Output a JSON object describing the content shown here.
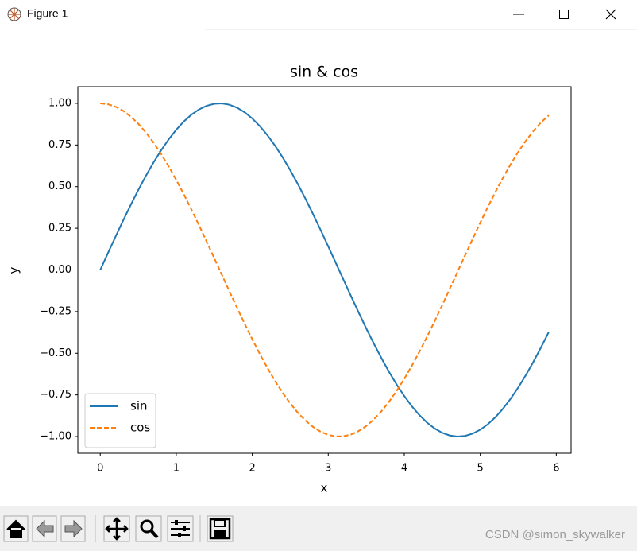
{
  "window": {
    "title": "Figure 1"
  },
  "watermark": "CSDN @simon_skywalker",
  "chart_data": {
    "type": "line",
    "title": "sin & cos",
    "x_label": "x",
    "y_label": "y",
    "x": [
      0,
      0.1,
      0.2,
      0.3,
      0.4,
      0.5,
      0.6,
      0.7,
      0.8,
      0.9,
      1.0,
      1.1,
      1.2,
      1.3,
      1.4,
      1.5,
      1.6,
      1.7,
      1.8,
      1.9,
      2.0,
      2.1,
      2.2,
      2.3,
      2.4,
      2.5,
      2.6,
      2.7,
      2.8,
      2.9,
      3.0,
      3.1,
      3.2,
      3.3,
      3.4,
      3.5,
      3.6,
      3.7,
      3.8,
      3.9,
      4.0,
      4.1,
      4.2,
      4.3,
      4.4,
      4.5,
      4.6,
      4.7,
      4.8,
      4.9,
      5.0,
      5.1,
      5.2,
      5.3,
      5.4,
      5.5,
      5.6,
      5.7,
      5.8,
      5.9
    ],
    "series": [
      {
        "name": "sin",
        "color": "#1f77b4",
        "linestyle": "solid",
        "values": [
          0,
          0.0998,
          0.1987,
          0.2955,
          0.3894,
          0.4794,
          0.5646,
          0.6442,
          0.7174,
          0.7833,
          0.8415,
          0.8912,
          0.932,
          0.9636,
          0.9854,
          0.9975,
          0.9996,
          0.9917,
          0.9738,
          0.9463,
          0.9093,
          0.8632,
          0.8085,
          0.7457,
          0.6755,
          0.5985,
          0.5155,
          0.4274,
          0.335,
          0.2392,
          0.1411,
          0.0416,
          -0.0584,
          -0.1577,
          -0.2555,
          -0.3508,
          -0.4425,
          -0.5298,
          -0.6119,
          -0.6878,
          -0.7568,
          -0.8183,
          -0.8716,
          -0.9162,
          -0.9516,
          -0.9775,
          -0.9937,
          -0.9999,
          -0.9962,
          -0.9825,
          -0.9589,
          -0.9258,
          -0.8835,
          -0.8323,
          -0.7728,
          -0.7055,
          -0.6313,
          -0.5507,
          -0.4646,
          -0.3739
        ]
      },
      {
        "name": "cos",
        "color": "#ff7f0e",
        "linestyle": "dashed",
        "values": [
          1,
          0.995,
          0.9801,
          0.9553,
          0.9211,
          0.8776,
          0.8253,
          0.7648,
          0.6967,
          0.6216,
          0.5403,
          0.4536,
          0.3624,
          0.2675,
          0.17,
          0.0707,
          -0.0292,
          -0.1288,
          -0.2272,
          -0.3233,
          -0.4161,
          -0.5048,
          -0.5885,
          -0.6663,
          -0.7374,
          -0.8011,
          -0.8569,
          -0.9041,
          -0.9422,
          -0.971,
          -0.99,
          -0.9991,
          -0.9983,
          -0.9875,
          -0.9668,
          -0.9365,
          -0.8968,
          -0.8481,
          -0.791,
          -0.7259,
          -0.6536,
          -0.5748,
          -0.4903,
          -0.4008,
          -0.3073,
          -0.2108,
          -0.1122,
          -0.0124,
          0.0875,
          0.1865,
          0.2837,
          0.378,
          0.4685,
          0.5544,
          0.6347,
          0.7087,
          0.7756,
          0.8347,
          0.8855,
          0.9275
        ]
      }
    ],
    "xlim": [
      -0.295,
      6.195
    ],
    "ylim": [
      -1.1,
      1.1
    ],
    "xticks": [
      0,
      1,
      2,
      3,
      4,
      5,
      6
    ],
    "yticks": [
      {
        "value": 1,
        "label": "1.00"
      },
      {
        "value": 0.75,
        "label": "0.75"
      },
      {
        "value": 0.5,
        "label": "0.50"
      },
      {
        "value": 0.25,
        "label": "0.25"
      },
      {
        "value": 0,
        "label": "0.00"
      },
      {
        "value": -0.25,
        "label": "−0.25"
      },
      {
        "value": -0.5,
        "label": "−0.50"
      },
      {
        "value": -0.75,
        "label": "−0.75"
      },
      {
        "value": -1,
        "label": "−1.00"
      }
    ],
    "grid": false,
    "legend": "lower left"
  }
}
